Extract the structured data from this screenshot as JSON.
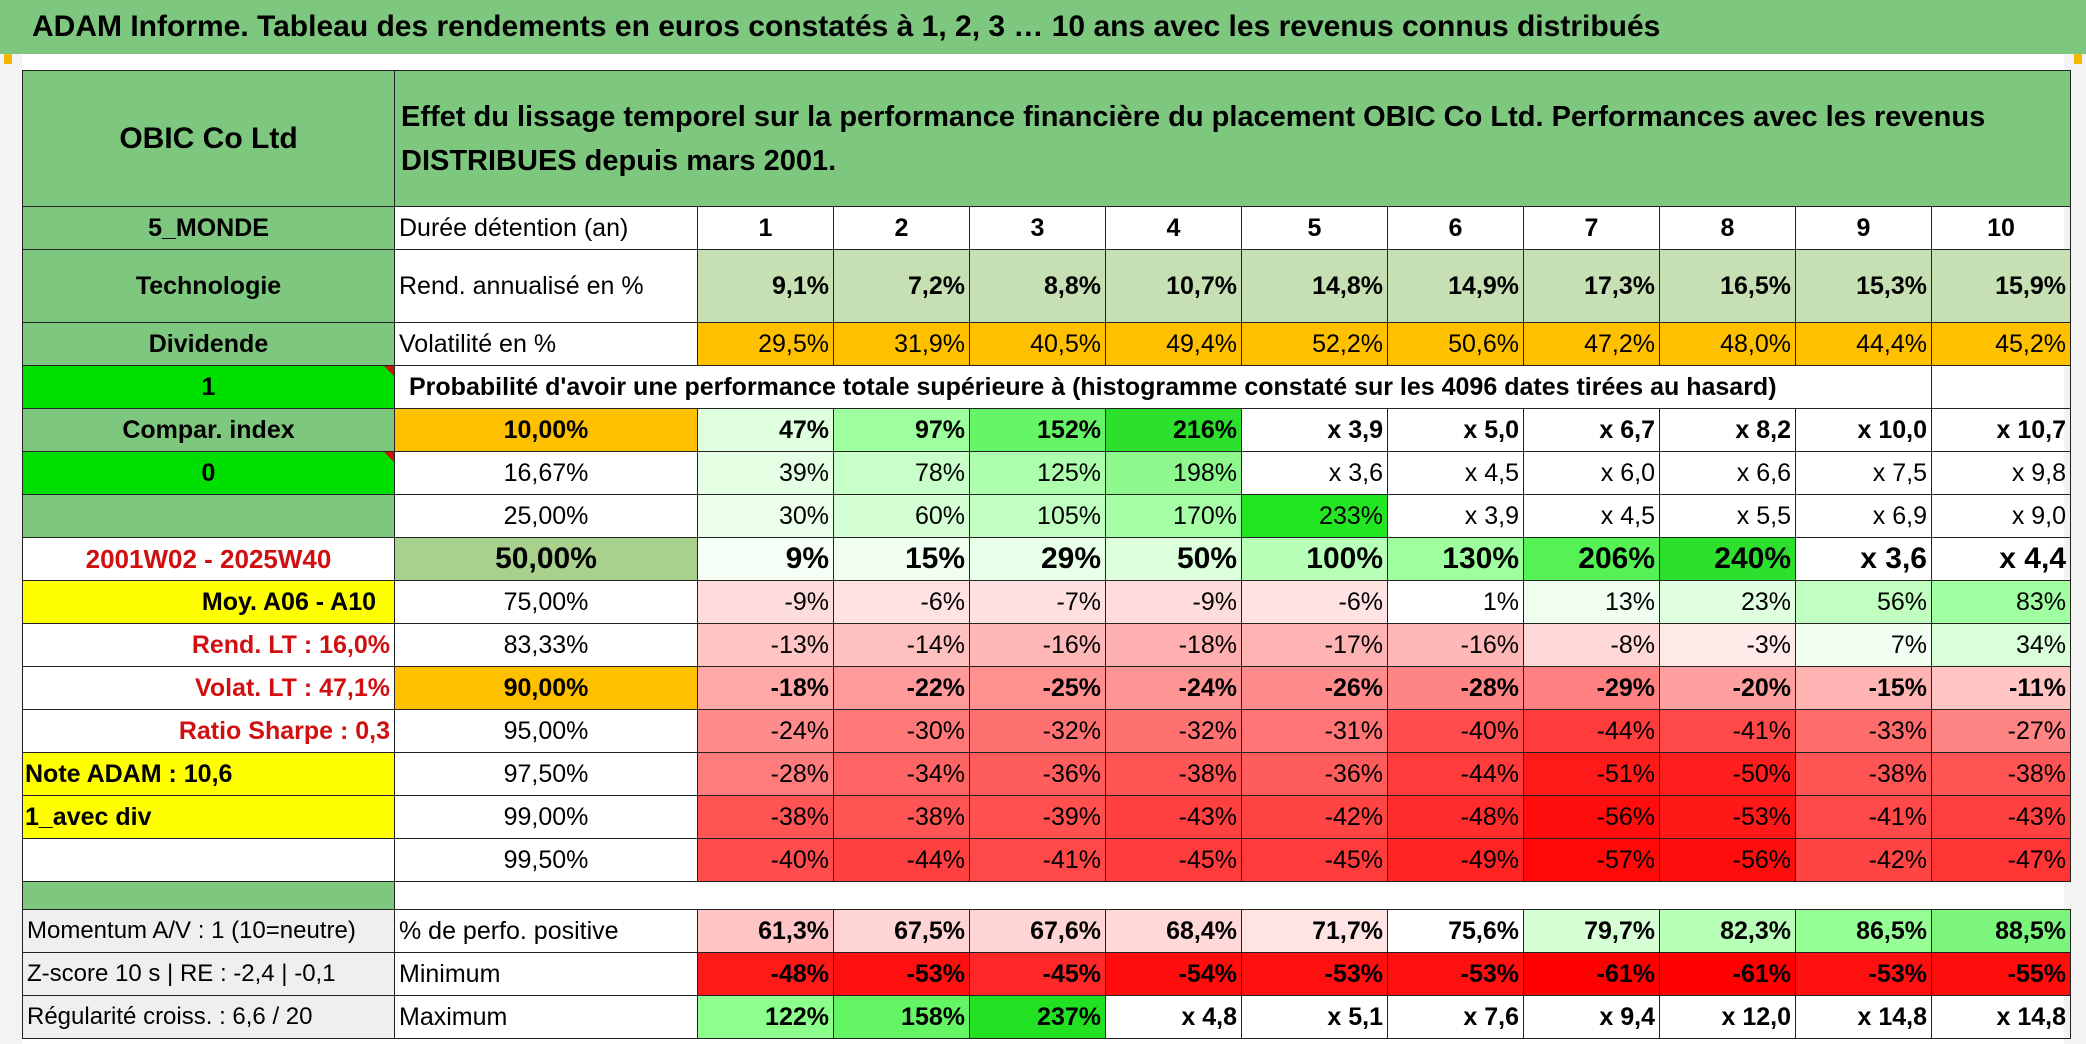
{
  "title": "ADAM Informe. Tableau des rendements en euros constatés à 1, 2, 3 … 10 ans avec les revenus connus distribués",
  "header": {
    "fund": "OBIC Co Ltd",
    "description": "Effet du lissage temporel sur la performance financière du placement OBIC Co Ltd. Performances avec les revenus DISTRIBUES depuis mars 2001."
  },
  "colors": {
    "header_green": "#7ec77e",
    "orange": "#ffc000",
    "yellow": "#ffff00",
    "bright_green": "#00e000",
    "red_text": "#d01010"
  },
  "left": {
    "zone": "5_MONDE",
    "sector": "Technologie",
    "dividend": "Dividende",
    "one": "1",
    "compar": "Compar. index",
    "zero": "0",
    "period": "2001W02 - 2025W40",
    "moy": "Moy. A06 - A10",
    "rend_lt": "Rend. LT :   16,0%",
    "volat_lt": "Volat. LT :   47,1%",
    "sharpe": "Ratio Sharpe :   0,3",
    "note": "Note ADAM : 10,6",
    "avec_div": "1_avec div",
    "momentum": "Momentum A/V : 1 (10=neutre)",
    "zscore": "Z-score 10 s | RE : -2,4 | -0,1",
    "regularite": "Régularité croiss. : 6,6 / 20"
  },
  "stats": {
    "duration_label": "Durée détention (an)",
    "years": [
      "1",
      "2",
      "3",
      "4",
      "5",
      "6",
      "7",
      "8",
      "9",
      "10"
    ],
    "rend_label": "Rend. annualisé en %",
    "rend": [
      "9,1%",
      "7,2%",
      "8,8%",
      "10,7%",
      "14,8%",
      "14,9%",
      "17,3%",
      "16,5%",
      "15,3%",
      "15,9%"
    ],
    "vol_label": "Volatilité en %",
    "vol": [
      "29,5%",
      "31,9%",
      "40,5%",
      "49,4%",
      "52,2%",
      "50,6%",
      "47,2%",
      "48,0%",
      "44,4%",
      "45,2%"
    ],
    "prob_title": "Probabilité d'avoir une performance totale supérieure à (histogramme constaté sur les 4096 dates tirées au hasard)"
  },
  "percentiles": [
    {
      "label": "10,00%",
      "values": [
        "47%",
        "97%",
        "152%",
        "216%",
        "x 3,9",
        "x 5,0",
        "x 6,7",
        "x 8,2",
        "x 10,0",
        "x 10,7"
      ]
    },
    {
      "label": "16,67%",
      "values": [
        "39%",
        "78%",
        "125%",
        "198%",
        "x 3,6",
        "x 4,5",
        "x 6,0",
        "x 6,6",
        "x 7,5",
        "x 9,8"
      ]
    },
    {
      "label": "25,00%",
      "values": [
        "30%",
        "60%",
        "105%",
        "170%",
        "233%",
        "x 3,9",
        "x 4,5",
        "x 5,5",
        "x 6,9",
        "x 9,0"
      ]
    },
    {
      "label": "50,00%",
      "values": [
        "9%",
        "15%",
        "29%",
        "50%",
        "100%",
        "130%",
        "206%",
        "240%",
        "x 3,6",
        "x 4,4"
      ]
    },
    {
      "label": "75,00%",
      "values": [
        "-9%",
        "-6%",
        "-7%",
        "-9%",
        "-6%",
        "1%",
        "13%",
        "23%",
        "56%",
        "83%"
      ]
    },
    {
      "label": "83,33%",
      "values": [
        "-13%",
        "-14%",
        "-16%",
        "-18%",
        "-17%",
        "-16%",
        "-8%",
        "-3%",
        "7%",
        "34%"
      ]
    },
    {
      "label": "90,00%",
      "values": [
        "-18%",
        "-22%",
        "-25%",
        "-24%",
        "-26%",
        "-28%",
        "-29%",
        "-20%",
        "-15%",
        "-11%"
      ]
    },
    {
      "label": "95,00%",
      "values": [
        "-24%",
        "-30%",
        "-32%",
        "-32%",
        "-31%",
        "-40%",
        "-44%",
        "-41%",
        "-33%",
        "-27%"
      ]
    },
    {
      "label": "97,50%",
      "values": [
        "-28%",
        "-34%",
        "-36%",
        "-38%",
        "-36%",
        "-44%",
        "-51%",
        "-50%",
        "-38%",
        "-38%"
      ]
    },
    {
      "label": "99,00%",
      "values": [
        "-38%",
        "-38%",
        "-39%",
        "-43%",
        "-42%",
        "-48%",
        "-56%",
        "-53%",
        "-41%",
        "-43%"
      ]
    },
    {
      "label": "99,50%",
      "values": [
        "-40%",
        "-44%",
        "-41%",
        "-45%",
        "-45%",
        "-49%",
        "-57%",
        "-56%",
        "-42%",
        "-47%"
      ]
    }
  ],
  "summary": [
    {
      "label": "% de perfo. positive",
      "values": [
        "61,3%",
        "67,5%",
        "67,6%",
        "68,4%",
        "71,7%",
        "75,6%",
        "79,7%",
        "82,3%",
        "86,5%",
        "88,5%"
      ]
    },
    {
      "label": "Minimum",
      "values": [
        "-48%",
        "-53%",
        "-45%",
        "-54%",
        "-53%",
        "-53%",
        "-61%",
        "-61%",
        "-53%",
        "-55%"
      ]
    },
    {
      "label": "Maximum",
      "values": [
        "122%",
        "158%",
        "237%",
        "x 4,8",
        "x 5,1",
        "x 7,6",
        "x 9,4",
        "x 12,0",
        "x 14,8",
        "x 14,8"
      ]
    }
  ]
}
